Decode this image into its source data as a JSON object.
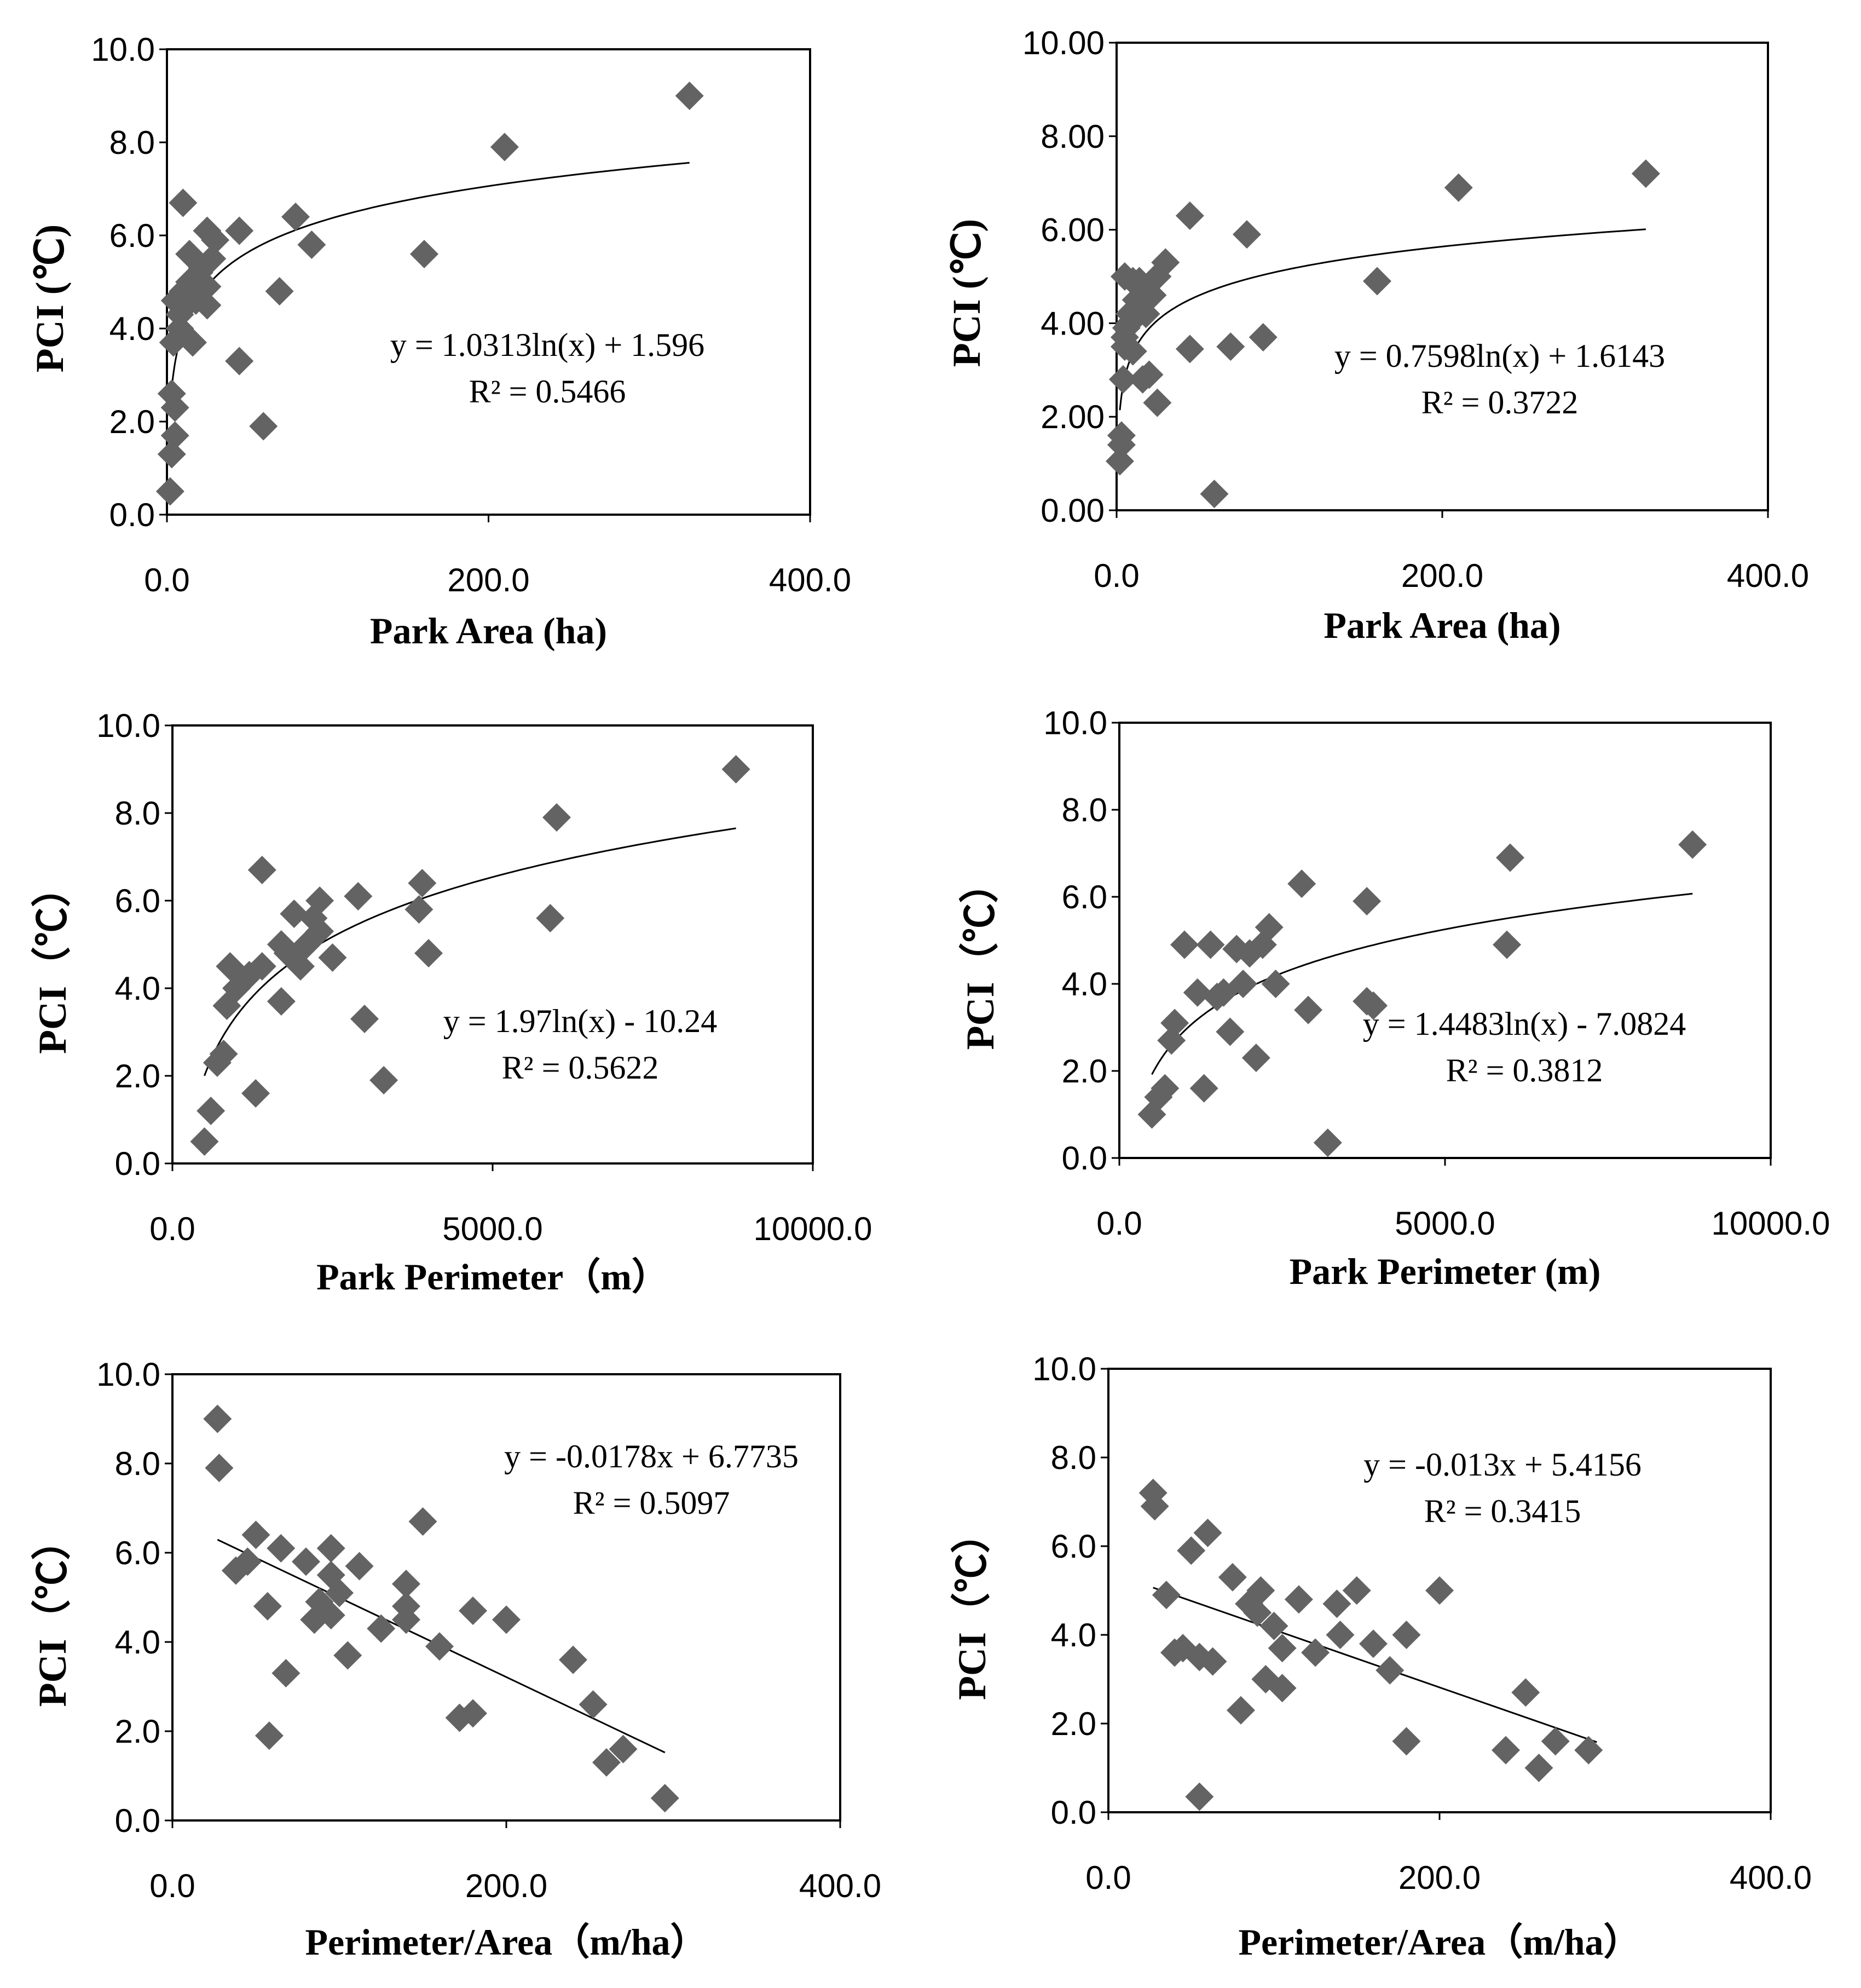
{
  "colors": {
    "marker": "#636363",
    "line": "#000000",
    "frame": "#000000",
    "background": "#ffffff"
  },
  "chart_data": [
    {
      "type": "scatter",
      "xlabel": "Park Area (ha)",
      "ylabel": "PCI (℃)",
      "xlim": [
        0,
        400
      ],
      "ylim": [
        0,
        10
      ],
      "xticks": [
        "0.0",
        "200.0",
        "400.0"
      ],
      "yticks": [
        "0.0",
        "2.0",
        "4.0",
        "6.0",
        "8.0",
        "10.0"
      ],
      "equation": "y = 1.0313ln(x) + 1.596",
      "r2": "R² = 0.5466",
      "fit": {
        "kind": "log",
        "a": 1.0313,
        "b": 1.596,
        "from": 2,
        "to": 325
      },
      "points": [
        [
          325,
          9.0
        ],
        [
          210,
          7.9
        ],
        [
          160,
          5.6
        ],
        [
          90,
          5.8
        ],
        [
          80,
          6.4
        ],
        [
          70,
          4.8
        ],
        [
          60,
          1.9
        ],
        [
          45,
          6.1
        ],
        [
          45,
          3.3
        ],
        [
          30,
          5.9
        ],
        [
          25,
          6.1
        ],
        [
          28,
          5.5
        ],
        [
          22,
          5.3
        ],
        [
          25,
          4.9
        ],
        [
          25,
          4.5
        ],
        [
          20,
          5.2
        ],
        [
          18,
          4.6
        ],
        [
          16,
          3.7
        ],
        [
          14,
          5.6
        ],
        [
          14,
          5.0
        ],
        [
          12,
          4.5
        ],
        [
          10,
          6.7
        ],
        [
          10,
          4.8
        ],
        [
          8,
          4.3
        ],
        [
          8,
          4.0
        ],
        [
          5,
          4.6
        ],
        [
          4,
          3.7
        ],
        [
          3,
          2.6
        ],
        [
          5,
          2.3
        ],
        [
          5,
          1.7
        ],
        [
          3,
          1.3
        ],
        [
          2,
          0.5
        ]
      ]
    },
    {
      "type": "scatter",
      "xlabel": "Park Area (ha)",
      "ylabel": "PCI (℃)",
      "xlim": [
        0,
        400
      ],
      "ylim": [
        0,
        10
      ],
      "xticks": [
        "0.0",
        "200.0",
        "400.0"
      ],
      "yticks": [
        "0.00",
        "2.00",
        "4.00",
        "6.00",
        "8.00",
        "10.00"
      ],
      "equation": "y = 0.7598ln(x) + 1.6143",
      "r2": "R² = 0.3722",
      "fit": {
        "kind": "log",
        "a": 0.7598,
        "b": 1.6143,
        "from": 2,
        "to": 325
      },
      "points": [
        [
          325,
          7.2
        ],
        [
          210,
          6.9
        ],
        [
          160,
          4.9
        ],
        [
          90,
          3.7
        ],
        [
          80,
          5.9
        ],
        [
          70,
          3.5
        ],
        [
          60,
          0.35
        ],
        [
          45,
          6.3
        ],
        [
          45,
          3.45
        ],
        [
          30,
          5.3
        ],
        [
          25,
          5.0
        ],
        [
          25,
          2.3
        ],
        [
          22,
          4.6
        ],
        [
          20,
          2.9
        ],
        [
          18,
          4.2
        ],
        [
          16,
          2.8
        ],
        [
          14,
          4.9
        ],
        [
          12,
          4.5
        ],
        [
          10,
          4.9
        ],
        [
          8,
          4.2
        ],
        [
          8,
          4.0
        ],
        [
          6,
          3.9
        ],
        [
          5,
          3.7
        ],
        [
          5,
          3.5
        ],
        [
          4,
          2.8
        ],
        [
          3,
          1.6
        ],
        [
          3,
          1.4
        ],
        [
          2,
          1.05
        ],
        [
          5,
          5.0
        ],
        [
          10,
          3.4
        ]
      ]
    },
    {
      "type": "scatter",
      "xlabel": "Park Perimeter（m）",
      "ylabel": "PCI（℃）",
      "xlim": [
        0,
        10000
      ],
      "ylim": [
        0,
        10
      ],
      "xticks": [
        "0.0",
        "5000.0",
        "10000.0"
      ],
      "yticks": [
        "0.0",
        "2.0",
        "4.0",
        "6.0",
        "8.0",
        "10.0"
      ],
      "equation": "y = 1.97ln(x) - 10.24",
      "r2": "R² = 0.5622",
      "fit": {
        "kind": "log",
        "a": 1.97,
        "b": -10.24,
        "from": 500,
        "to": 8800
      },
      "points": [
        [
          8800,
          9.0
        ],
        [
          6000,
          7.9
        ],
        [
          5900,
          5.6
        ],
        [
          3900,
          6.4
        ],
        [
          3850,
          5.8
        ],
        [
          4000,
          4.8
        ],
        [
          3300,
          1.9
        ],
        [
          3000,
          3.3
        ],
        [
          2900,
          6.1
        ],
        [
          2500,
          4.7
        ],
        [
          2300,
          6.0
        ],
        [
          2200,
          5.6
        ],
        [
          2300,
          5.3
        ],
        [
          2100,
          5.0
        ],
        [
          2000,
          4.5
        ],
        [
          1900,
          5.7
        ],
        [
          1800,
          4.8
        ],
        [
          1700,
          5.0
        ],
        [
          1700,
          3.7
        ],
        [
          1400,
          6.7
        ],
        [
          1400,
          4.5
        ],
        [
          1300,
          1.6
        ],
        [
          1200,
          4.3
        ],
        [
          1000,
          4.0
        ],
        [
          900,
          4.5
        ],
        [
          850,
          3.6
        ],
        [
          800,
          2.5
        ],
        [
          700,
          2.3
        ],
        [
          600,
          1.2
        ],
        [
          500,
          0.5
        ]
      ]
    },
    {
      "type": "scatter",
      "xlabel": "Park Perimeter (m)",
      "ylabel": "PCI（℃）",
      "xlim": [
        0,
        10000
      ],
      "ylim": [
        0,
        10
      ],
      "xticks": [
        "0.0",
        "5000.0",
        "10000.0"
      ],
      "yticks": [
        "0.0",
        "2.0",
        "4.0",
        "6.0",
        "8.0",
        "10.0"
      ],
      "equation": "y = 1.4483ln(x) - 7.0824",
      "r2": "R² = 0.3812",
      "fit": {
        "kind": "log",
        "a": 1.4483,
        "b": -7.0824,
        "from": 500,
        "to": 8800
      },
      "points": [
        [
          8800,
          7.2
        ],
        [
          6000,
          6.9
        ],
        [
          5950,
          4.9
        ],
        [
          3800,
          5.9
        ],
        [
          3900,
          3.5
        ],
        [
          3800,
          3.6
        ],
        [
          3200,
          0.35
        ],
        [
          2900,
          3.4
        ],
        [
          2800,
          6.3
        ],
        [
          2400,
          4.0
        ],
        [
          2300,
          5.3
        ],
        [
          2200,
          4.9
        ],
        [
          2100,
          2.3
        ],
        [
          2000,
          4.7
        ],
        [
          1900,
          4.0
        ],
        [
          1800,
          4.8
        ],
        [
          1700,
          2.9
        ],
        [
          1600,
          3.8
        ],
        [
          1500,
          3.7
        ],
        [
          1400,
          4.9
        ],
        [
          1300,
          1.6
        ],
        [
          1200,
          3.8
        ],
        [
          1000,
          4.9
        ],
        [
          850,
          3.1
        ],
        [
          800,
          2.7
        ],
        [
          700,
          1.6
        ],
        [
          600,
          1.4
        ],
        [
          500,
          1.0
        ]
      ]
    },
    {
      "type": "scatter",
      "xlabel": "Perimeter/Area（m/ha）",
      "ylabel": "PCI（℃）",
      "xlim": [
        0,
        400
      ],
      "ylim": [
        0,
        10
      ],
      "xticks": [
        "0.0",
        "200.0",
        "400.0"
      ],
      "yticks": [
        "0.0",
        "2.0",
        "4.0",
        "6.0",
        "8.0",
        "10.0"
      ],
      "equation": "y = -0.0178x + 6.7735",
      "r2": "R² = 0.5097",
      "fit": {
        "kind": "linear",
        "a": -0.0178,
        "b": 6.7735,
        "from": 27,
        "to": 295
      },
      "points": [
        [
          27,
          9.0
        ],
        [
          28,
          7.9
        ],
        [
          38,
          5.6
        ],
        [
          45,
          5.8
        ],
        [
          50,
          6.4
        ],
        [
          57,
          4.8
        ],
        [
          58,
          1.9
        ],
        [
          65,
          6.1
        ],
        [
          68,
          3.3
        ],
        [
          80,
          5.8
        ],
        [
          85,
          4.5
        ],
        [
          88,
          4.9
        ],
        [
          95,
          6.1
        ],
        [
          95,
          5.5
        ],
        [
          95,
          4.6
        ],
        [
          100,
          5.1
        ],
        [
          105,
          3.7
        ],
        [
          112,
          5.7
        ],
        [
          125,
          4.3
        ],
        [
          140,
          5.3
        ],
        [
          140,
          4.8
        ],
        [
          140,
          4.5
        ],
        [
          150,
          6.7
        ],
        [
          160,
          3.9
        ],
        [
          172,
          2.3
        ],
        [
          180,
          2.4
        ],
        [
          180,
          4.7
        ],
        [
          200,
          4.5
        ],
        [
          240,
          3.6
        ],
        [
          252,
          2.6
        ],
        [
          260,
          1.3
        ],
        [
          270,
          1.6
        ],
        [
          295,
          0.5
        ]
      ]
    },
    {
      "type": "scatter",
      "xlabel": "Perimeter/Area（m/ha）",
      "ylabel": "PCI（℃）",
      "xlim": [
        0,
        400
      ],
      "ylim": [
        0,
        10
      ],
      "xticks": [
        "0.0",
        "200.0",
        "400.0"
      ],
      "yticks": [
        "0.0",
        "2.0",
        "4.0",
        "6.0",
        "8.0",
        "10.0"
      ],
      "equation": "y = -0.013x + 5.4156",
      "r2": "R² = 0.3415",
      "fit": {
        "kind": "linear",
        "a": -0.013,
        "b": 5.4156,
        "from": 27,
        "to": 295
      },
      "points": [
        [
          27,
          7.2
        ],
        [
          28,
          6.9
        ],
        [
          35,
          4.9
        ],
        [
          40,
          3.6
        ],
        [
          45,
          3.7
        ],
        [
          50,
          5.9
        ],
        [
          55,
          3.5
        ],
        [
          55,
          0.35
        ],
        [
          60,
          6.3
        ],
        [
          63,
          3.4
        ],
        [
          75,
          5.3
        ],
        [
          80,
          2.3
        ],
        [
          85,
          4.7
        ],
        [
          90,
          4.5
        ],
        [
          92,
          5.0
        ],
        [
          95,
          3.0
        ],
        [
          100,
          4.2
        ],
        [
          105,
          3.7
        ],
        [
          105,
          2.8
        ],
        [
          115,
          4.8
        ],
        [
          125,
          3.6
        ],
        [
          138,
          4.7
        ],
        [
          140,
          4.0
        ],
        [
          150,
          5.0
        ],
        [
          160,
          3.8
        ],
        [
          170,
          3.2
        ],
        [
          180,
          4.0
        ],
        [
          180,
          1.6
        ],
        [
          200,
          5.0
        ],
        [
          240,
          1.4
        ],
        [
          252,
          2.7
        ],
        [
          260,
          1.0
        ],
        [
          270,
          1.6
        ],
        [
          290,
          1.4
        ]
      ]
    }
  ]
}
